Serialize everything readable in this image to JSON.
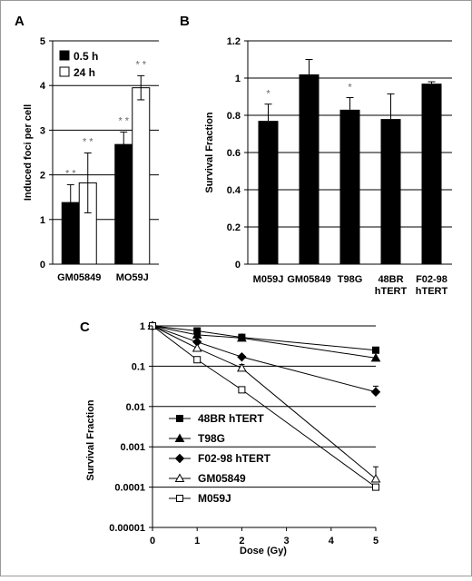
{
  "chart_data": [
    {
      "panel": "A",
      "type": "bar",
      "title": "",
      "xlabel": "",
      "ylabel": "Induced foci per cell",
      "ylim": [
        0,
        5
      ],
      "yticks": [
        "0",
        "1",
        "2",
        "3",
        "4",
        "5"
      ],
      "categories": [
        "GM05849",
        "MO59J"
      ],
      "legend": "top-left inside",
      "grid": true,
      "series": [
        {
          "name": "0.5 h",
          "color": "#000000",
          "values": [
            1.38,
            2.68
          ],
          "errors": [
            0.4,
            0.28
          ]
        },
        {
          "name": "24 h",
          "color": "#ffffff",
          "values": [
            1.82,
            3.95
          ],
          "errors": [
            0.67,
            0.27
          ]
        }
      ],
      "annotations": [
        "* *",
        "* *",
        "* *",
        "* *"
      ]
    },
    {
      "panel": "B",
      "type": "bar",
      "title": "",
      "xlabel": "",
      "ylabel": "Survival Fraction",
      "ylim": [
        0,
        1.2
      ],
      "yticks": [
        "0",
        "0.2",
        "0.4",
        "0.6",
        "0.8",
        "1",
        "1.2"
      ],
      "categories": [
        [
          "M059J"
        ],
        [
          "GM05849"
        ],
        [
          "T98G"
        ],
        [
          "48BR",
          "hTERT"
        ],
        [
          "F02-98",
          "hTERT"
        ]
      ],
      "grid": true,
      "values": [
        0.77,
        1.02,
        0.83,
        0.78,
        0.97
      ],
      "errors": [
        0.09,
        0.08,
        0.065,
        0.135,
        0.01
      ],
      "stars": [
        "*",
        "",
        "*",
        "",
        ""
      ]
    },
    {
      "panel": "C",
      "type": "line",
      "title": "",
      "xlabel": "Dose (Gy)",
      "ylabel": "Survival Fraction",
      "yscale": "log",
      "xlim": [
        0,
        5
      ],
      "ylim": [
        1e-05,
        1
      ],
      "xticks": [
        "0",
        "1",
        "2",
        "3",
        "4",
        "5"
      ],
      "yticks": [
        "0.00001",
        "0.0001",
        "0.001",
        "0.01",
        "0.1",
        "1"
      ],
      "legend": "bottom-left inside",
      "grid": true,
      "series": [
        {
          "name": "48BR hTERT",
          "marker": "square-filled",
          "x": [
            0,
            1,
            2,
            5
          ],
          "y": [
            1,
            0.75,
            0.52,
            0.25
          ]
        },
        {
          "name": "T98G",
          "marker": "triangle-filled",
          "x": [
            0,
            1,
            2,
            5
          ],
          "y": [
            1,
            0.6,
            0.5,
            0.16
          ]
        },
        {
          "name": "F02-98 hTERT",
          "marker": "diamond-filled",
          "x": [
            0,
            1,
            2,
            5
          ],
          "y": [
            1,
            0.4,
            0.17,
            0.023
          ],
          "errors": [
            0,
            0,
            0,
            0.009
          ]
        },
        {
          "name": "GM05849",
          "marker": "triangle-open",
          "x": [
            0,
            1,
            2,
            5
          ],
          "y": [
            1,
            0.28,
            0.09,
            0.00016
          ],
          "errors": [
            0,
            0,
            0.02,
            0.00016
          ]
        },
        {
          "name": "M059J",
          "marker": "square-open",
          "x": [
            0,
            1,
            2,
            5
          ],
          "y": [
            1,
            0.145,
            0.026,
            0.0001
          ]
        }
      ]
    }
  ]
}
